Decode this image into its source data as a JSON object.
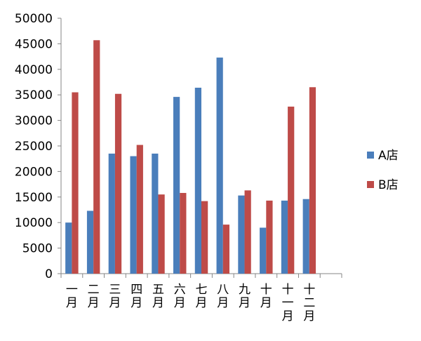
{
  "chart_data": {
    "type": "bar",
    "title": "",
    "xlabel": "",
    "ylabel": "",
    "ylim": [
      0,
      50000
    ],
    "ytick_step": 5000,
    "grid": false,
    "legend_position": "right",
    "categories": [
      "一月",
      "二月",
      "三月",
      "四月",
      "五月",
      "六月",
      "七月",
      "八月",
      "九月",
      "十月",
      "十一月",
      "十二月"
    ],
    "series": [
      {
        "name": "A店",
        "color": "#4a7ebb",
        "values": [
          10000,
          12300,
          23500,
          23000,
          23500,
          34600,
          36400,
          42300,
          15300,
          9000,
          14300,
          14600
        ]
      },
      {
        "name": "B店",
        "color": "#be4b48",
        "values": [
          35500,
          45700,
          35200,
          25200,
          15500,
          15800,
          14200,
          9600,
          16300,
          14300,
          32700,
          36500
        ]
      }
    ]
  }
}
